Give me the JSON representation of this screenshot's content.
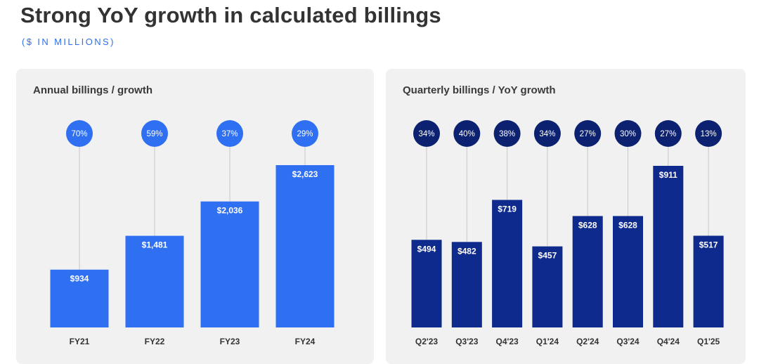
{
  "title": "Strong YoY growth in calculated billings",
  "subtitle": "($ IN MILLIONS)",
  "chart_data": [
    {
      "type": "bar",
      "title": "Annual billings / growth",
      "categories": [
        "FY21",
        "FY22",
        "FY23",
        "FY24"
      ],
      "values": [
        934,
        1481,
        2036,
        2623
      ],
      "value_labels": [
        "$934",
        "$1,481",
        "$2,036",
        "$2,623"
      ],
      "growth_labels": [
        "70%",
        "59%",
        "37%",
        "29%"
      ],
      "bar_color": "#2f6ff2",
      "bubble_color": "#2f6ff2",
      "grid": false
    },
    {
      "type": "bar",
      "title": "Quarterly billings / YoY growth",
      "categories": [
        "Q2'23",
        "Q3'23",
        "Q4'23",
        "Q1'24",
        "Q2'24",
        "Q3'24",
        "Q4'24",
        "Q1'25"
      ],
      "values": [
        494,
        482,
        719,
        457,
        628,
        628,
        911,
        517
      ],
      "value_labels": [
        "$494",
        "$482",
        "$719",
        "$457",
        "$628",
        "$628",
        "$911",
        "$517"
      ],
      "growth_labels": [
        "34%",
        "40%",
        "38%",
        "34%",
        "27%",
        "30%",
        "27%",
        "13%"
      ],
      "bar_color": "#0e2a8c",
      "bubble_color": "#0c2270",
      "grid": false
    }
  ]
}
